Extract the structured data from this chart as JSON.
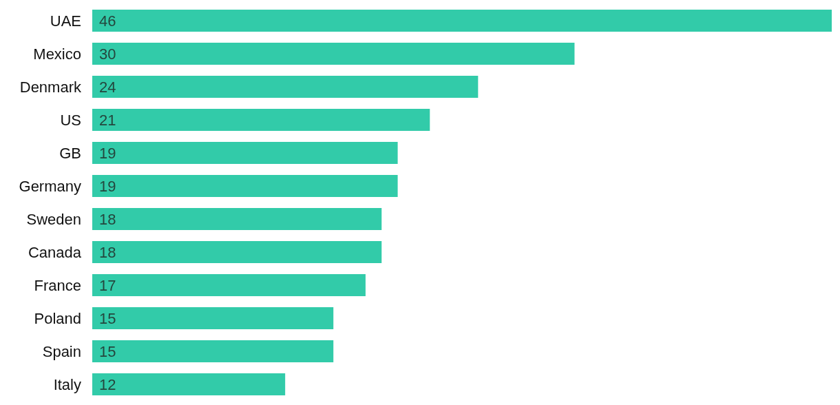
{
  "chart_data": {
    "type": "bar",
    "orientation": "horizontal",
    "data_labels": true,
    "grid": false,
    "legend": false,
    "categories": [
      "UAE",
      "Mexico",
      "Denmark",
      "US",
      "GB",
      "Germany",
      "Sweden",
      "Canada",
      "France",
      "Poland",
      "Spain",
      "Italy"
    ],
    "values": [
      46,
      30,
      24,
      21,
      19,
      19,
      18,
      18,
      17,
      15,
      15,
      12
    ],
    "color": "#32cba9"
  }
}
